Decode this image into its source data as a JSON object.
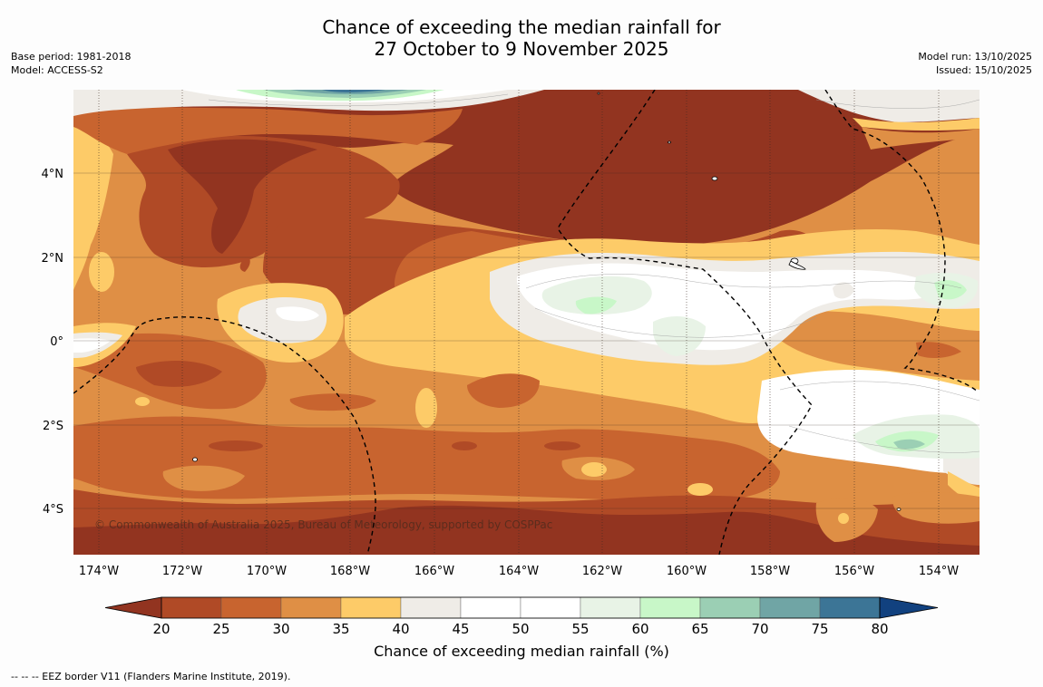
{
  "title": {
    "line1": "Chance of exceeding the median rainfall for",
    "line2": "27 October to 9 November 2025"
  },
  "meta_left": {
    "base_period": "Base period: 1981-2018",
    "model": "Model: ACCESS-S2"
  },
  "meta_right": {
    "model_run": "Model run: 13/10/2025",
    "issued": "Issued: 15/10/2025"
  },
  "copyright": "© Commonwealth of Australia 2025, Bureau of Meteorology, supported by COSPPac",
  "lon_ticks": [
    "174°W",
    "172°W",
    "170°W",
    "168°W",
    "166°W",
    "164°W",
    "162°W",
    "160°W",
    "158°W",
    "156°W",
    "154°W"
  ],
  "lat_ticks": [
    "4°N",
    "2°N",
    "0°",
    "2°S",
    "4°S"
  ],
  "colorbar": {
    "label": "Chance of exceeding median rainfall (%)",
    "ticks": [
      "20",
      "25",
      "30",
      "35",
      "40",
      "45",
      "50",
      "55",
      "60",
      "65",
      "70",
      "75",
      "80"
    ],
    "colors": [
      "#923420",
      "#b04a26",
      "#c8642f",
      "#df8f45",
      "#fdcb68",
      "#efece7",
      "#ffffff",
      "#ffffff",
      "#e8f3e6",
      "#c8f7c8",
      "#9bcfb4",
      "#70a5a5",
      "#3c7596",
      "#11417f"
    ]
  },
  "footnote": "--  --  -- EEZ border V11 (Flanders Marine Institute, 2019)."
}
